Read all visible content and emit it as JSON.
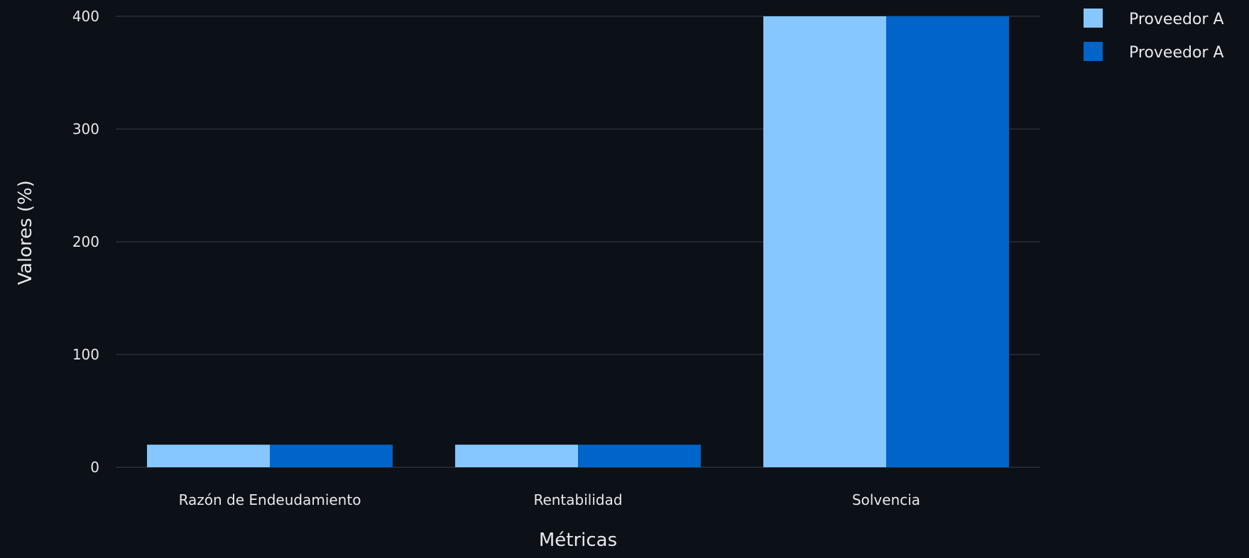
{
  "chart_data": {
    "type": "bar",
    "categories": [
      "Razón de Endeudamiento",
      "Rentabilidad",
      "Solvencia"
    ],
    "series": [
      {
        "name": "Proveedor A",
        "values": [
          20,
          20,
          400
        ],
        "color": "#86c7ff"
      },
      {
        "name": "Proveedor A",
        "values": [
          20,
          20,
          400
        ],
        "color": "#0064c8"
      }
    ],
    "xlabel": "Métricas",
    "ylabel": "Valores (%)",
    "ylim": [
      0,
      400
    ],
    "yticks": [
      0,
      100,
      200,
      300,
      400
    ],
    "grid": true,
    "legend_position": "top-right"
  },
  "colors": {
    "background": "#0c1017",
    "grid": "#2a2f3b",
    "text": "#e6e9ee"
  }
}
